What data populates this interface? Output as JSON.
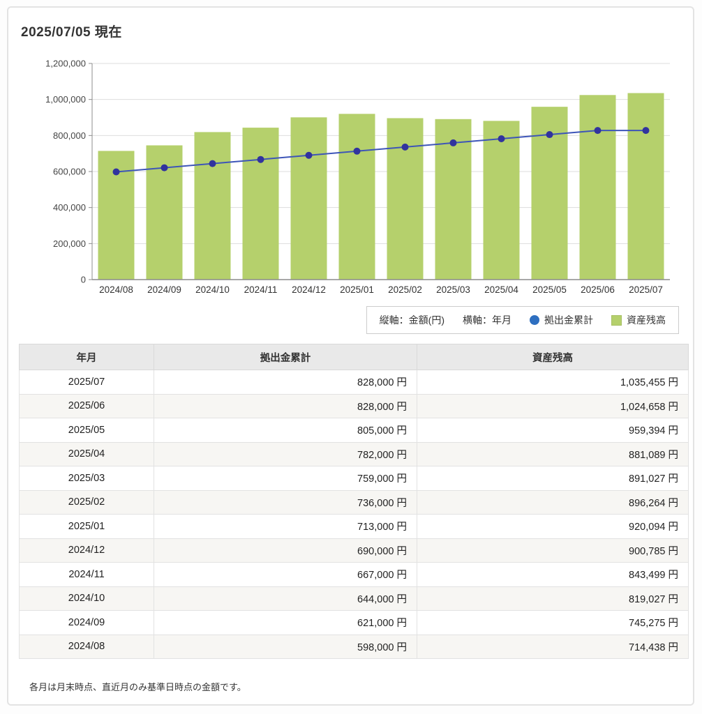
{
  "page": {
    "title": "2025/07/05 現在",
    "footnote": "各月は月末時点、直近月のみ基準日時点の金額です。"
  },
  "legend": {
    "y_axis_label": "縦軸：金額(円)",
    "x_axis_label": "横軸：年月",
    "line_label": "拠出金累計",
    "bar_label": "資産残高",
    "line_marker_color": "#2e6fc0",
    "bar_marker_color": "#b5d06c"
  },
  "chart_data": {
    "type": "bar",
    "title": "",
    "xlabel": "年月",
    "ylabel": "金額(円)",
    "categories": [
      "2024/08",
      "2024/09",
      "2024/10",
      "2024/11",
      "2024/12",
      "2025/01",
      "2025/02",
      "2025/03",
      "2025/04",
      "2025/05",
      "2025/06",
      "2025/07"
    ],
    "series": [
      {
        "name": "資産残高",
        "type": "bar",
        "values": [
          714438,
          745275,
          819027,
          843499,
          900785,
          920094,
          896264,
          891027,
          881089,
          959394,
          1024658,
          1035455
        ]
      },
      {
        "name": "拠出金累計",
        "type": "line",
        "values": [
          598000,
          621000,
          644000,
          667000,
          690000,
          713000,
          736000,
          759000,
          782000,
          805000,
          828000,
          828000
        ]
      }
    ],
    "ylim": [
      0,
      1200000
    ],
    "y_ticks": [
      0,
      200000,
      400000,
      600000,
      800000,
      1000000,
      1200000
    ],
    "grid": true,
    "legend_position": "bottom-right",
    "bar_color": "#b5d06c",
    "line_color": "#3d55b8",
    "dot_color": "#31339e",
    "axis_color": "#8c8c8c",
    "grid_color": "#dddddd",
    "tick_label_color": "#444444"
  },
  "table": {
    "headers": [
      "年月",
      "拠出金累計",
      "資産残高"
    ],
    "rows": [
      {
        "month": "2025/07",
        "contribution": "828,000 円",
        "balance": "1,035,455 円"
      },
      {
        "month": "2025/06",
        "contribution": "828,000 円",
        "balance": "1,024,658 円"
      },
      {
        "month": "2025/05",
        "contribution": "805,000 円",
        "balance": "959,394 円"
      },
      {
        "month": "2025/04",
        "contribution": "782,000 円",
        "balance": "881,089 円"
      },
      {
        "month": "2025/03",
        "contribution": "759,000 円",
        "balance": "891,027 円"
      },
      {
        "month": "2025/02",
        "contribution": "736,000 円",
        "balance": "896,264 円"
      },
      {
        "month": "2025/01",
        "contribution": "713,000 円",
        "balance": "920,094 円"
      },
      {
        "month": "2024/12",
        "contribution": "690,000 円",
        "balance": "900,785 円"
      },
      {
        "month": "2024/11",
        "contribution": "667,000 円",
        "balance": "843,499 円"
      },
      {
        "month": "2024/10",
        "contribution": "644,000 円",
        "balance": "819,027 円"
      },
      {
        "month": "2024/09",
        "contribution": "621,000 円",
        "balance": "745,275 円"
      },
      {
        "month": "2024/08",
        "contribution": "598,000 円",
        "balance": "714,438 円"
      }
    ]
  }
}
